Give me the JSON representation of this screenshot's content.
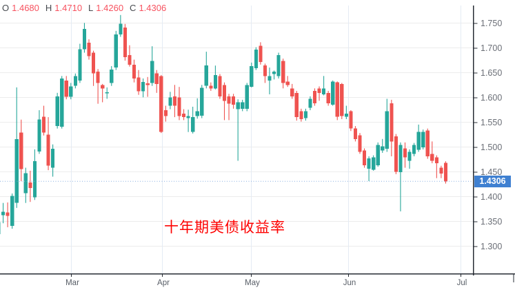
{
  "header": {
    "o_label": "O",
    "o_value": "1.4680",
    "h_label": "H",
    "h_value": "1.4710",
    "l_label": "L",
    "l_value": "1.4260",
    "c_label": "C",
    "c_value": "1.4306"
  },
  "annotation": {
    "text": "十年期美债收益率",
    "color": "#fe0100"
  },
  "last_price": {
    "value": "1.4306",
    "badge_color": "#3f80d1"
  },
  "colors": {
    "up": "#26a69a",
    "down": "#ef5350",
    "grid_horizontal": "#ececec",
    "grid_vertical": "#e4ebf4",
    "axis_line": "#262b33",
    "price_label": "#6a6e76",
    "time_label": "#575d66",
    "dotted_line": "#83abdf",
    "legend_letter": "#45494e",
    "legend_value": "#f7525f"
  },
  "chart_data": {
    "type": "candlestick",
    "title": "十年期美债收益率",
    "legend_ohlc": {
      "open": 1.468,
      "high": 1.471,
      "low": 1.426,
      "close": 1.4306
    },
    "last_close": 1.4306,
    "y_axis": {
      "min": 1.3,
      "max": 1.75,
      "tick_step": 0.05,
      "ticks": [
        "1.750",
        "1.700",
        "1.650",
        "1.600",
        "1.550",
        "1.500",
        "1.450",
        "1.400",
        "1.350",
        "1.300"
      ]
    },
    "x_axis": {
      "ticks": [
        "Mar",
        "Apr",
        "May",
        "Jun",
        "Jul"
      ]
    },
    "grid": true,
    "legend_position": "top-left",
    "candles_ohlc": [
      [
        1.324,
        1.35,
        1.289,
        1.348
      ],
      [
        1.362,
        1.387,
        1.346,
        1.369
      ],
      [
        1.368,
        1.388,
        1.338,
        1.361
      ],
      [
        1.341,
        1.406,
        1.335,
        1.401
      ],
      [
        1.387,
        1.62,
        1.377,
        1.516
      ],
      [
        1.529,
        1.555,
        1.431,
        1.455
      ],
      [
        1.407,
        1.458,
        1.387,
        1.447
      ],
      [
        1.428,
        1.452,
        1.389,
        1.417
      ],
      [
        1.398,
        1.495,
        1.393,
        1.471
      ],
      [
        1.491,
        1.574,
        1.486,
        1.555
      ],
      [
        1.561,
        1.583,
        1.523,
        1.529
      ],
      [
        1.525,
        1.56,
        1.453,
        1.462
      ],
      [
        1.458,
        1.505,
        1.44,
        1.496
      ],
      [
        1.542,
        1.609,
        1.537,
        1.602
      ],
      [
        1.541,
        1.643,
        1.537,
        1.638
      ],
      [
        1.634,
        1.643,
        1.596,
        1.601
      ],
      [
        1.601,
        1.629,
        1.596,
        1.622
      ],
      [
        1.623,
        1.648,
        1.618,
        1.643
      ],
      [
        1.634,
        1.708,
        1.629,
        1.697
      ],
      [
        1.697,
        1.75,
        1.69,
        1.738
      ],
      [
        1.71,
        1.717,
        1.676,
        1.683
      ],
      [
        1.69,
        1.694,
        1.623,
        1.648
      ],
      [
        1.652,
        1.657,
        1.587,
        1.629
      ],
      [
        1.625,
        1.627,
        1.59,
        1.618
      ],
      [
        1.608,
        1.62,
        1.597,
        1.61
      ],
      [
        1.629,
        1.663,
        1.623,
        1.656
      ],
      [
        1.66,
        1.734,
        1.655,
        1.727
      ],
      [
        1.727,
        1.766,
        1.722,
        1.748
      ],
      [
        1.741,
        1.748,
        1.674,
        1.681
      ],
      [
        1.685,
        1.705,
        1.662,
        1.666
      ],
      [
        1.666,
        1.676,
        1.63,
        1.638
      ],
      [
        1.64,
        1.655,
        1.605,
        1.612
      ],
      [
        1.612,
        1.638,
        1.6,
        1.631
      ],
      [
        1.628,
        1.641,
        1.601,
        1.625
      ],
      [
        1.629,
        1.703,
        1.623,
        1.673
      ],
      [
        1.648,
        1.655,
        1.609,
        1.627
      ],
      [
        1.643,
        1.645,
        1.528,
        1.53
      ],
      [
        1.574,
        1.583,
        1.551,
        1.562
      ],
      [
        1.583,
        1.611,
        1.576,
        1.6
      ],
      [
        1.602,
        1.625,
        1.56,
        1.583
      ],
      [
        1.6,
        1.621,
        1.554,
        1.562
      ],
      [
        1.567,
        1.576,
        1.554,
        1.56
      ],
      [
        1.558,
        1.575,
        1.53,
        1.562
      ],
      [
        1.53,
        1.581,
        1.527,
        1.56
      ],
      [
        1.562,
        1.598,
        1.557,
        1.572
      ],
      [
        1.563,
        1.625,
        1.558,
        1.619
      ],
      [
        1.623,
        1.692,
        1.618,
        1.664
      ],
      [
        1.623,
        1.63,
        1.613,
        1.618
      ],
      [
        1.618,
        1.664,
        1.616,
        1.645
      ],
      [
        1.643,
        1.647,
        1.597,
        1.602
      ],
      [
        1.625,
        1.63,
        1.554,
        1.593
      ],
      [
        1.602,
        1.607,
        1.554,
        1.587
      ],
      [
        1.602,
        1.607,
        1.577,
        1.585
      ],
      [
        1.576,
        1.596,
        1.472,
        1.59
      ],
      [
        1.577,
        1.595,
        1.572,
        1.59
      ],
      [
        1.577,
        1.629,
        1.572,
        1.625
      ],
      [
        1.621,
        1.67,
        1.62,
        1.663
      ],
      [
        1.659,
        1.701,
        1.655,
        1.696
      ],
      [
        1.704,
        1.711,
        1.666,
        1.671
      ],
      [
        1.664,
        1.668,
        1.629,
        1.643
      ],
      [
        1.634,
        1.66,
        1.606,
        1.643
      ],
      [
        1.647,
        1.654,
        1.636,
        1.652
      ],
      [
        1.643,
        1.69,
        1.638,
        1.685
      ],
      [
        1.673,
        1.678,
        1.618,
        1.629
      ],
      [
        1.632,
        1.643,
        1.621,
        1.625
      ],
      [
        1.618,
        1.627,
        1.597,
        1.602
      ],
      [
        1.609,
        1.613,
        1.553,
        1.56
      ],
      [
        1.572,
        1.577,
        1.551,
        1.556
      ],
      [
        1.558,
        1.577,
        1.553,
        1.572
      ],
      [
        1.579,
        1.602,
        1.574,
        1.597
      ],
      [
        1.613,
        1.618,
        1.583,
        1.588
      ],
      [
        1.618,
        1.622,
        1.593,
        1.609
      ],
      [
        1.606,
        1.643,
        1.604,
        1.618
      ],
      [
        1.609,
        1.613,
        1.583,
        1.588
      ],
      [
        1.585,
        1.634,
        1.583,
        1.632
      ],
      [
        1.63,
        1.632,
        1.554,
        1.561
      ],
      [
        1.627,
        1.629,
        1.556,
        1.562
      ],
      [
        1.561,
        1.583,
        1.556,
        1.567
      ],
      [
        1.572,
        1.574,
        1.532,
        1.537
      ],
      [
        1.537,
        1.542,
        1.511,
        1.516
      ],
      [
        1.523,
        1.528,
        1.486,
        1.49
      ],
      [
        1.493,
        1.497,
        1.458,
        1.463
      ],
      [
        1.456,
        1.481,
        1.431,
        1.477
      ],
      [
        1.454,
        1.483,
        1.452,
        1.479
      ],
      [
        1.463,
        1.509,
        1.46,
        1.504
      ],
      [
        1.493,
        1.516,
        1.488,
        1.501
      ],
      [
        1.496,
        1.597,
        1.49,
        1.572
      ],
      [
        1.588,
        1.595,
        1.481,
        1.511
      ],
      [
        1.521,
        1.526,
        1.445,
        1.45
      ],
      [
        1.449,
        1.509,
        1.37,
        1.504
      ],
      [
        1.497,
        1.509,
        1.458,
        1.479
      ],
      [
        1.472,
        1.495,
        1.456,
        1.49
      ],
      [
        1.486,
        1.508,
        1.481,
        1.504
      ],
      [
        1.494,
        1.545,
        1.49,
        1.53
      ],
      [
        1.499,
        1.535,
        1.495,
        1.53
      ],
      [
        1.533,
        1.537,
        1.476,
        1.481
      ],
      [
        1.486,
        1.511,
        1.467,
        1.472
      ],
      [
        1.479,
        1.483,
        1.437,
        1.467
      ],
      [
        1.458,
        1.462,
        1.437,
        1.446
      ],
      [
        1.468,
        1.471,
        1.426,
        1.4306
      ]
    ]
  }
}
